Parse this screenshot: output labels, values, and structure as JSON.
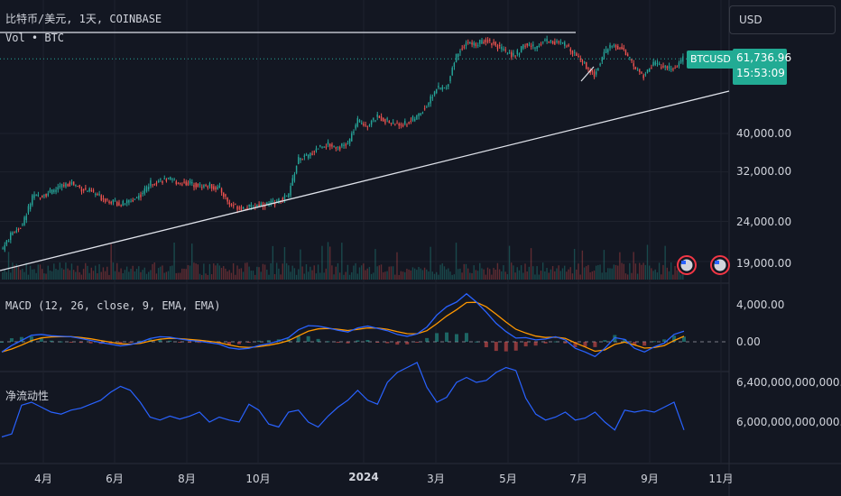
{
  "header": {
    "symbol_line": "比特币/美元, 1天, COINBASE",
    "volume_line": "Vol • BTC"
  },
  "currency_selector": {
    "label": "USD"
  },
  "price_tag": {
    "symbol": "BTCUSD",
    "price": "61,736.96",
    "countdown": "15:53:09"
  },
  "colors": {
    "bg": "#131722",
    "up": "#26a69a",
    "down": "#ef5350",
    "macd": "#2962ff",
    "signal": "#ff9800",
    "liquidity": "#2962ff",
    "tag": "#22ab94"
  },
  "indicators": {
    "macd_label": "MACD (12, 26, close, 9, EMA, EMA)",
    "liquidity_label": "净流动性"
  },
  "chart_data": {
    "type": "candlestick",
    "x_tick_labels": [
      "4月",
      "6月",
      "8月",
      "10月",
      "2024",
      "3月",
      "5月",
      "7月",
      "9月",
      "11月"
    ],
    "price_axis": {
      "labels": [
        "40,000.00",
        "32,000.00",
        "24,000.00",
        "19,000.00"
      ],
      "values": [
        40000,
        32000,
        24000,
        19000
      ],
      "scale": "log"
    },
    "price_series_weekly": [
      20500,
      22500,
      23500,
      27500,
      28000,
      28500,
      29500,
      30000,
      29000,
      28500,
      27500,
      27000,
      26500,
      27000,
      28000,
      30000,
      30500,
      30500,
      30000,
      30000,
      29500,
      29500,
      29000,
      26500,
      26000,
      26000,
      26500,
      26500,
      27000,
      28000,
      34500,
      35000,
      37000,
      37500,
      37000,
      37500,
      43000,
      42000,
      44000,
      43000,
      42000,
      42500,
      44000,
      47000,
      52000,
      52000,
      63000,
      68000,
      67000,
      69000,
      67000,
      64000,
      63000,
      67000,
      66000,
      69000,
      68000,
      67000,
      64000,
      60000,
      56000,
      64000,
      67000,
      65000,
      59000,
      56000,
      60000,
      59000,
      58000,
      61736.96
    ],
    "macd_axis": {
      "labels": [
        "4,000.00",
        "0.00"
      ],
      "values": [
        4000,
        0
      ]
    },
    "macd_series_weekly": [
      -1100,
      -400,
      150,
      700,
      800,
      650,
      600,
      550,
      350,
      150,
      -80,
      -250,
      -450,
      -300,
      -50,
      350,
      550,
      500,
      300,
      150,
      50,
      -100,
      -250,
      -650,
      -800,
      -700,
      -400,
      -200,
      100,
      450,
      1300,
      1750,
      1700,
      1500,
      1250,
      1050,
      1500,
      1700,
      1450,
      1200,
      800,
      600,
      850,
      1600,
      2900,
      3800,
      4300,
      5200,
      4300,
      3200,
      2000,
      1100,
      400,
      450,
      200,
      300,
      550,
      200,
      -700,
      -1100,
      -1600,
      -700,
      450,
      250,
      -700,
      -1100,
      -550,
      -150,
      800,
      1150
    ],
    "liquidity_axis": {
      "labels": [
        "6,400,000,000,000.00",
        "6,000,000,000,000.00"
      ],
      "values": [
        6400000000000,
        6000000000000
      ]
    },
    "liquidity_series_weekly": [
      5.85,
      5.88,
      6.17,
      6.2,
      6.15,
      6.1,
      6.08,
      6.12,
      6.14,
      6.18,
      6.22,
      6.3,
      6.36,
      6.32,
      6.2,
      6.05,
      6.02,
      6.06,
      6.03,
      6.06,
      6.1,
      6.0,
      6.05,
      6.02,
      6.0,
      6.18,
      6.12,
      5.98,
      5.95,
      6.1,
      6.12,
      6.0,
      5.95,
      6.06,
      6.15,
      6.22,
      6.32,
      6.22,
      6.18,
      6.4,
      6.5,
      6.55,
      6.6,
      6.35,
      6.2,
      6.25,
      6.4,
      6.45,
      6.4,
      6.42,
      6.5,
      6.55,
      6.52,
      6.24,
      6.08,
      6.02,
      6.05,
      6.1,
      6.02,
      6.04,
      6.1,
      6.0,
      5.92,
      6.12,
      6.1,
      6.12,
      6.1,
      6.15,
      6.2,
      5.92
    ]
  }
}
